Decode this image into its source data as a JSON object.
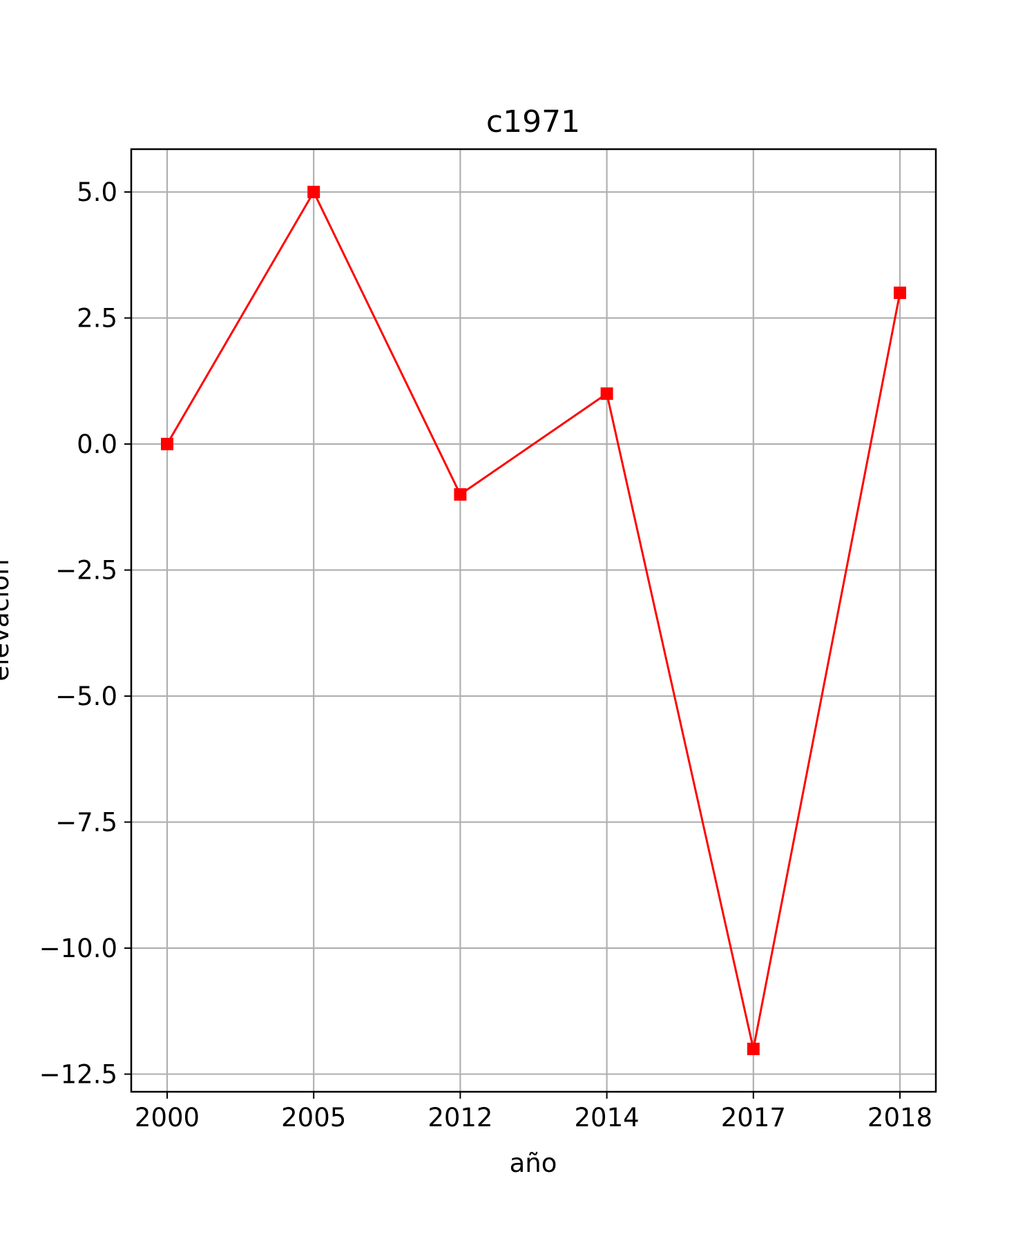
{
  "chart_data": {
    "type": "line",
    "title": "c1971",
    "xlabel": "año",
    "ylabel": "elevación",
    "categories": [
      "2000",
      "2005",
      "2012",
      "2014",
      "2017",
      "2018"
    ],
    "series": [
      {
        "values": [
          0,
          5,
          -1,
          1,
          -12,
          3
        ],
        "color": "#ff0000",
        "marker": "square"
      }
    ],
    "yticks": [
      5.0,
      2.5,
      0.0,
      -2.5,
      -5.0,
      -7.5,
      -10.0,
      -12.5
    ],
    "ytick_labels": [
      "5.0",
      "2.5",
      "0.0",
      "−2.5",
      "−5.0",
      "−7.5",
      "−10.0",
      "−12.5"
    ],
    "ylim": [
      -12.85,
      5.85
    ],
    "grid": true
  }
}
